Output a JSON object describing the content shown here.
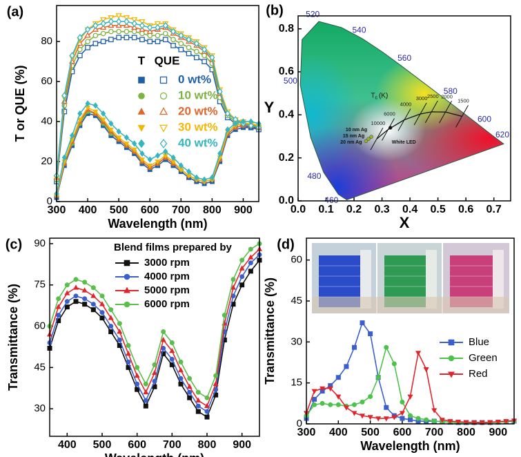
{
  "chart_data": [
    {
      "type": "line",
      "panel_label": "(a)",
      "x_label": "Wavelength (nm)",
      "y_label": "T or QUE (%)",
      "xlim": [
        300,
        950
      ],
      "ylim": [
        0,
        98
      ],
      "xticks": [
        300,
        400,
        500,
        600,
        700,
        800,
        900
      ],
      "yticks": [
        0,
        20,
        40,
        60,
        80
      ],
      "legend_headers": [
        "T",
        "QUE"
      ],
      "x": [
        300,
        325,
        350,
        375,
        400,
        425,
        450,
        475,
        500,
        525,
        550,
        575,
        600,
        625,
        650,
        675,
        700,
        725,
        750,
        775,
        800,
        825,
        850,
        875,
        900,
        925,
        950
      ],
      "series": [
        {
          "name": "0 wt%",
          "color": "#1f5fa8",
          "marker": "square",
          "values": [
            2,
            18,
            28,
            38,
            44,
            43,
            38,
            33,
            30,
            27,
            24,
            19,
            16,
            18,
            21,
            18,
            15,
            12,
            10,
            9,
            10,
            20,
            33,
            36,
            37,
            37,
            37
          ],
          "que_values": [
            10,
            45,
            65,
            73,
            77,
            79,
            80,
            81,
            82,
            82,
            82,
            81,
            80,
            80,
            81,
            78,
            76,
            74,
            72,
            70,
            66,
            50,
            42,
            39,
            38,
            37,
            36
          ]
        },
        {
          "name": "10 wt%",
          "color": "#7cb342",
          "marker": "circle",
          "values": [
            3,
            19,
            29,
            39,
            45,
            44,
            39,
            34,
            31,
            28,
            25,
            20,
            17,
            19,
            22,
            19,
            16,
            13,
            11,
            10,
            11,
            21,
            34,
            37,
            38,
            38,
            38
          ],
          "que_values": [
            11,
            48,
            68,
            76,
            80,
            83,
            84,
            85,
            85,
            85,
            85,
            84,
            83,
            83,
            84,
            81,
            79,
            77,
            75,
            73,
            69,
            52,
            43,
            40,
            39,
            38,
            37
          ]
        },
        {
          "name": "20 wt%",
          "color": "#e0662a",
          "marker": "triangle",
          "values": [
            3,
            19,
            30,
            40,
            46,
            44,
            40,
            35,
            31,
            28,
            25,
            20,
            17,
            19,
            22,
            19,
            16,
            13,
            11,
            10,
            11,
            21,
            34,
            37,
            38,
            38,
            38
          ],
          "que_values": [
            12,
            50,
            70,
            79,
            83,
            86,
            87,
            88,
            88,
            88,
            87,
            86,
            85,
            86,
            87,
            84,
            82,
            80,
            78,
            75,
            71,
            54,
            44,
            41,
            39,
            38,
            37
          ]
        },
        {
          "name": "30 wt%",
          "color": "#f2b705",
          "marker": "tridown",
          "values": [
            3,
            20,
            31,
            41,
            47,
            45,
            41,
            36,
            32,
            29,
            26,
            21,
            18,
            20,
            23,
            20,
            16,
            13,
            11,
            10,
            11,
            22,
            35,
            38,
            39,
            39,
            38
          ],
          "que_values": [
            12,
            52,
            72,
            81,
            86,
            89,
            91,
            92,
            93,
            92,
            91,
            90,
            88,
            89,
            89,
            86,
            84,
            82,
            80,
            77,
            73,
            56,
            45,
            41,
            40,
            38,
            37
          ]
        },
        {
          "name": "40 wt%",
          "color": "#35b5c0",
          "marker": "diamond",
          "values": [
            4,
            22,
            33,
            44,
            49,
            48,
            44,
            39,
            35,
            32,
            29,
            24,
            21,
            23,
            25,
            22,
            18,
            15,
            12,
            11,
            12,
            24,
            36,
            39,
            40,
            40,
            39
          ],
          "que_values": [
            13,
            53,
            73,
            82,
            86,
            88,
            89,
            90,
            90,
            90,
            89,
            88,
            87,
            87,
            88,
            85,
            83,
            81,
            79,
            76,
            72,
            55,
            44,
            41,
            39,
            38,
            37
          ]
        }
      ]
    },
    {
      "type": "cie",
      "panel_label": "(b)",
      "x_label": "X",
      "y_label": "Y",
      "xlim": [
        0,
        0.76
      ],
      "ylim": [
        0,
        0.86
      ],
      "xticks": [
        {
          "value": 0,
          "label": "0.0"
        },
        0.1,
        0.2,
        0.3,
        0.4,
        0.5,
        0.6,
        0.7
      ],
      "yticks": [
        {
          "value": 0,
          "label": "0.0"
        },
        0.2,
        0.4,
        0.6,
        0.8
      ],
      "locus_x": [
        0.174,
        0.144,
        0.091,
        0.045,
        0.008,
        0.014,
        0.074,
        0.155,
        0.23,
        0.302,
        0.373,
        0.512,
        0.627,
        0.691,
        0.735
      ],
      "locus_y": [
        0.005,
        0.03,
        0.133,
        0.295,
        0.538,
        0.75,
        0.834,
        0.806,
        0.754,
        0.692,
        0.624,
        0.487,
        0.373,
        0.308,
        0.265
      ],
      "locus_labels": [
        null,
        "460",
        "480",
        null,
        "500",
        null,
        "520",
        null,
        "540",
        null,
        "560",
        "580",
        "600",
        "620",
        null
      ],
      "planckian_x": [
        0.281,
        0.322,
        0.38,
        0.437,
        0.477,
        0.527,
        0.586
      ],
      "planckian_y": [
        0.288,
        0.332,
        0.377,
        0.404,
        0.414,
        0.413,
        0.393
      ],
      "planckian_labels": [
        "10000",
        "6000",
        "4000",
        "3000",
        "2500",
        "2000",
        "1500"
      ],
      "tc_label": "T",
      "tc_sub": "c",
      "tc_unit": "(K)",
      "points": [
        {
          "label": "White LED",
          "x": 0.33,
          "y": 0.34,
          "color": "#111111"
        },
        {
          "label": "10 nm Ag",
          "x": 0.262,
          "y": 0.298,
          "color": "#9ab030"
        },
        {
          "label": "15 nm Ag",
          "x": 0.252,
          "y": 0.288,
          "color": "#9ab030"
        },
        {
          "label": "20 nm Ag",
          "x": 0.243,
          "y": 0.278,
          "color": "#9ab030"
        }
      ]
    },
    {
      "type": "line",
      "panel_label": "(c)",
      "x_label": "Wavelength (nm)",
      "y_label": "Transmittance (%)",
      "xlim": [
        350,
        950
      ],
      "ylim": [
        20,
        92
      ],
      "xticks": [
        400,
        500,
        600,
        700,
        800,
        900
      ],
      "yticks": [
        30,
        45,
        60,
        75,
        90
      ],
      "legend_title": "Blend films prepared by",
      "x": [
        350,
        375,
        400,
        425,
        450,
        475,
        500,
        525,
        550,
        575,
        600,
        625,
        650,
        675,
        700,
        725,
        750,
        775,
        800,
        825,
        850,
        875,
        900,
        925,
        950
      ],
      "series": [
        {
          "name": "3000 rpm",
          "color": "#111111",
          "marker": "square",
          "values": [
            52,
            62,
            67,
            69,
            68,
            66,
            63,
            58,
            53,
            45,
            37,
            31,
            38,
            50,
            46,
            39,
            34,
            29,
            27,
            35,
            55,
            68,
            75,
            80,
            84
          ]
        },
        {
          "name": "4000 rpm",
          "color": "#3a5fcd",
          "marker": "circle",
          "values": [
            54,
            64,
            69,
            71,
            70,
            68,
            65,
            60,
            55,
            47,
            39,
            33,
            40,
            52,
            48,
            41,
            36,
            31,
            29,
            37,
            58,
            71,
            78,
            83,
            86
          ]
        },
        {
          "name": "5000 rpm",
          "color": "#e0252d",
          "marker": "triangle",
          "values": [
            57,
            67,
            72,
            74,
            73,
            71,
            68,
            63,
            58,
            50,
            42,
            36,
            43,
            55,
            51,
            44,
            38,
            33,
            31,
            39,
            61,
            74,
            81,
            85,
            88
          ]
        },
        {
          "name": "6000 rpm",
          "color": "#5bbd4c",
          "marker": "circle",
          "values": [
            60,
            70,
            75,
            77,
            76,
            74,
            71,
            66,
            61,
            53,
            45,
            39,
            46,
            58,
            54,
            47,
            41,
            36,
            34,
            42,
            64,
            77,
            84,
            88,
            90
          ]
        }
      ]
    },
    {
      "type": "line",
      "panel_label": "(d)",
      "x_label": "Wavelength (nm)",
      "y_label": "Transmittance (%)",
      "xlim": [
        300,
        950
      ],
      "ylim": [
        0,
        68
      ],
      "xticks": [
        300,
        400,
        500,
        600,
        700,
        800,
        900
      ],
      "yticks": [
        0,
        15,
        30,
        45,
        60
      ],
      "x": [
        300,
        325,
        350,
        375,
        400,
        425,
        450,
        475,
        500,
        525,
        550,
        575,
        600,
        625,
        650,
        675,
        700,
        725,
        750,
        775,
        800,
        825,
        850,
        875,
        900,
        925,
        950
      ],
      "series": [
        {
          "name": "Blue",
          "color": "#3a5fcd",
          "marker": "square",
          "values": [
            2,
            9,
            12,
            14,
            17,
            21,
            28,
            37,
            33,
            17,
            6,
            3,
            2,
            1.5,
            1,
            1,
            1,
            0.8,
            0.6,
            0.5,
            0.5,
            0.5,
            0.5,
            0.5,
            0.6,
            0.8,
            1
          ]
        },
        {
          "name": "Green",
          "color": "#4cc24a",
          "marker": "circle",
          "values": [
            3,
            7,
            7.5,
            7,
            7,
            6.5,
            7,
            8,
            10,
            17,
            28,
            22,
            8,
            3,
            2,
            1.5,
            1,
            0.8,
            0.6,
            0.5,
            0.5,
            0.5,
            0.5,
            0.5,
            0.6,
            0.8,
            1
          ]
        },
        {
          "name": "Red",
          "color": "#e0252d",
          "marker": "tridown",
          "values": [
            4,
            12,
            13,
            13,
            10,
            6,
            4,
            3,
            2.5,
            2,
            2,
            2.5,
            4,
            10,
            26,
            20,
            5,
            1.5,
            1,
            0.8,
            0.6,
            0.5,
            0.5,
            0.6,
            0.8,
            1,
            1.2
          ]
        }
      ]
    }
  ]
}
